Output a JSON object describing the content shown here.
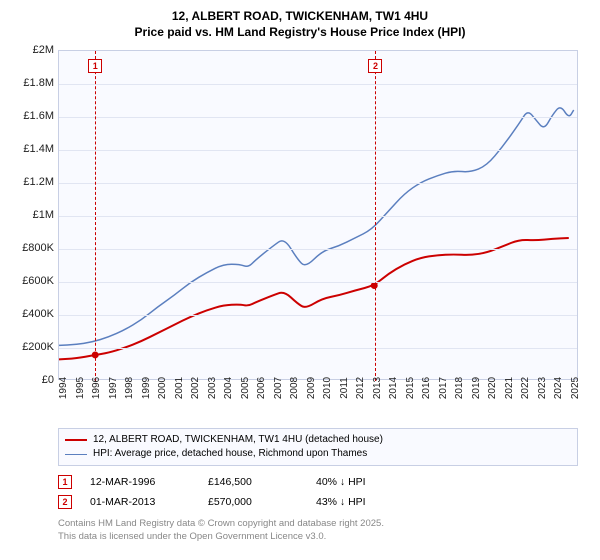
{
  "title": {
    "line1": "12, ALBERT ROAD, TWICKENHAM, TW1 4HU",
    "line2": "Price paid vs. HM Land Registry's House Price Index (HPI)"
  },
  "chart": {
    "type": "line",
    "background_color": "#f9faff",
    "border_color": "#c8cfe4",
    "grid_color": "#e1e5f2",
    "ylim": [
      0,
      2000000
    ],
    "ytick_step": 200000,
    "yticks": [
      "£0",
      "£200K",
      "£400K",
      "£600K",
      "£800K",
      "£1M",
      "£1.2M",
      "£1.4M",
      "£1.6M",
      "£1.8M",
      "£2M"
    ],
    "xlim": [
      1994,
      2025.5
    ],
    "xticks": [
      1994,
      1995,
      1996,
      1997,
      1998,
      1999,
      2000,
      2001,
      2002,
      2003,
      2004,
      2005,
      2006,
      2007,
      2008,
      2009,
      2010,
      2011,
      2012,
      2013,
      2014,
      2015,
      2016,
      2017,
      2018,
      2019,
      2020,
      2021,
      2022,
      2023,
      2024,
      2025
    ],
    "label_fontsize": 11,
    "series": [
      {
        "id": "price_paid",
        "legend": "12, ALBERT ROAD, TWICKENHAM, TW1 4HU (detached house)",
        "color": "#cc0000",
        "width": 2,
        "data": [
          [
            1994.0,
            120000
          ],
          [
            1995.0,
            125000
          ],
          [
            1996.2,
            146500
          ],
          [
            1997.0,
            160000
          ],
          [
            1998.0,
            190000
          ],
          [
            1999.0,
            230000
          ],
          [
            2000.0,
            280000
          ],
          [
            2001.0,
            330000
          ],
          [
            2002.0,
            380000
          ],
          [
            2003.0,
            420000
          ],
          [
            2004.0,
            450000
          ],
          [
            2005.0,
            455000
          ],
          [
            2005.5,
            445000
          ],
          [
            2006.0,
            470000
          ],
          [
            2007.0,
            510000
          ],
          [
            2007.7,
            535000
          ],
          [
            2008.5,
            460000
          ],
          [
            2009.0,
            430000
          ],
          [
            2010.0,
            490000
          ],
          [
            2011.0,
            510000
          ],
          [
            2012.0,
            540000
          ],
          [
            2013.17,
            570000
          ],
          [
            2014.0,
            640000
          ],
          [
            2015.0,
            700000
          ],
          [
            2016.0,
            740000
          ],
          [
            2017.0,
            755000
          ],
          [
            2018.0,
            760000
          ],
          [
            2019.0,
            755000
          ],
          [
            2020.0,
            770000
          ],
          [
            2021.0,
            810000
          ],
          [
            2022.0,
            850000
          ],
          [
            2023.0,
            845000
          ],
          [
            2024.0,
            855000
          ],
          [
            2025.0,
            860000
          ]
        ]
      },
      {
        "id": "hpi",
        "legend": "HPI: Average price, detached house, Richmond upon Thames",
        "color": "#5b7fbf",
        "width": 1.5,
        "data": [
          [
            1994.0,
            205000
          ],
          [
            1995.0,
            210000
          ],
          [
            1996.0,
            225000
          ],
          [
            1997.0,
            255000
          ],
          [
            1998.0,
            300000
          ],
          [
            1999.0,
            360000
          ],
          [
            2000.0,
            440000
          ],
          [
            2001.0,
            510000
          ],
          [
            2002.0,
            590000
          ],
          [
            2003.0,
            650000
          ],
          [
            2004.0,
            700000
          ],
          [
            2005.0,
            700000
          ],
          [
            2005.5,
            680000
          ],
          [
            2006.0,
            730000
          ],
          [
            2007.0,
            810000
          ],
          [
            2007.7,
            860000
          ],
          [
            2008.5,
            730000
          ],
          [
            2009.0,
            680000
          ],
          [
            2010.0,
            780000
          ],
          [
            2011.0,
            810000
          ],
          [
            2012.0,
            860000
          ],
          [
            2013.0,
            910000
          ],
          [
            2014.0,
            1020000
          ],
          [
            2015.0,
            1130000
          ],
          [
            2016.0,
            1200000
          ],
          [
            2017.0,
            1240000
          ],
          [
            2018.0,
            1270000
          ],
          [
            2019.0,
            1260000
          ],
          [
            2020.0,
            1300000
          ],
          [
            2021.0,
            1420000
          ],
          [
            2022.0,
            1560000
          ],
          [
            2022.5,
            1640000
          ],
          [
            2023.0,
            1580000
          ],
          [
            2023.5,
            1520000
          ],
          [
            2024.0,
            1610000
          ],
          [
            2024.5,
            1670000
          ],
          [
            2025.0,
            1590000
          ],
          [
            2025.3,
            1640000
          ]
        ]
      }
    ],
    "markers": [
      {
        "n": "1",
        "x": 1996.2,
        "color": "#cc0000"
      },
      {
        "n": "2",
        "x": 2013.17,
        "color": "#cc0000"
      }
    ]
  },
  "transactions": [
    {
      "n": "1",
      "date": "12-MAR-1996",
      "price": "£146,500",
      "delta": "40% ↓ HPI",
      "color": "#cc0000"
    },
    {
      "n": "2",
      "date": "01-MAR-2013",
      "price": "£570,000",
      "delta": "43% ↓ HPI",
      "color": "#cc0000"
    }
  ],
  "credit": {
    "line1": "Contains HM Land Registry data © Crown copyright and database right 2025.",
    "line2": "This data is licensed under the Open Government Licence v3.0."
  }
}
